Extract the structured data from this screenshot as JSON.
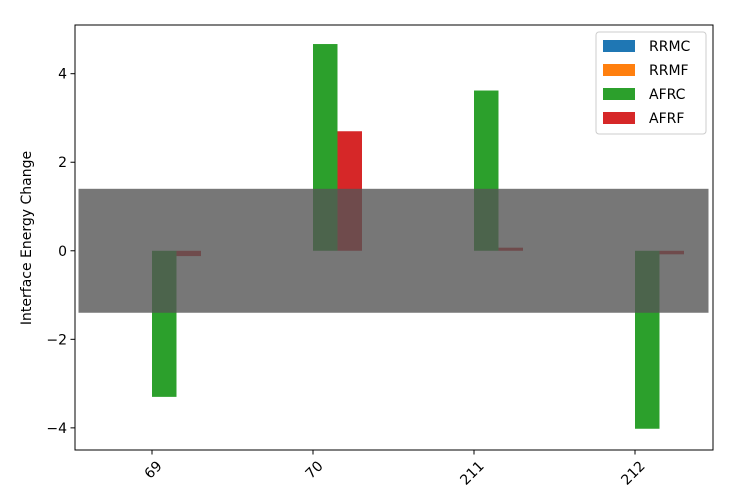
{
  "chart_data": {
    "type": "bar",
    "title": "",
    "xlabel": "",
    "ylabel": "Interface Energy Change",
    "categories": [
      "69",
      "70",
      "211",
      "212"
    ],
    "ylim": [
      -4.5,
      5.1
    ],
    "yticks": [
      -4,
      -2,
      0,
      2,
      4
    ],
    "series": [
      {
        "name": "RRMC",
        "color": "#1f77b4",
        "values": [
          0,
          0,
          0,
          0
        ]
      },
      {
        "name": "RRMF",
        "color": "#ff7f0e",
        "values": [
          0,
          0,
          0,
          0
        ]
      },
      {
        "name": "AFRC",
        "color": "#2ca02c",
        "values": [
          -3.3,
          4.67,
          3.62,
          -4.02
        ]
      },
      {
        "name": "AFRF",
        "color": "#d62728",
        "values": [
          -0.12,
          2.7,
          0.07,
          -0.08
        ]
      }
    ],
    "band": {
      "y_min": -1.4,
      "y_max": 1.4,
      "color": "#555555",
      "opacity": 0.8
    },
    "grid": false,
    "legend_position": "top-right",
    "x_tick_rotation": 45
  }
}
